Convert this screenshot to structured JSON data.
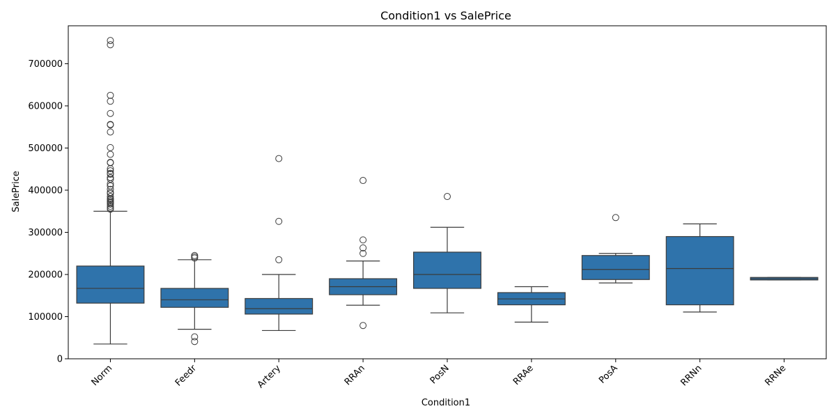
{
  "chart_data": {
    "type": "box",
    "title": "Condition1 vs SalePrice",
    "xlabel": "Condition1",
    "ylabel": "SalePrice",
    "ylim": [
      0,
      790000
    ],
    "yticks": [
      0,
      100000,
      200000,
      300000,
      400000,
      500000,
      600000,
      700000
    ],
    "color": "#2f73ab",
    "line_color": "#3b3b3b",
    "categories": [
      "Norm",
      "Feedr",
      "Artery",
      "RRAn",
      "PosN",
      "RRAe",
      "PosA",
      "RRNn",
      "RRNe"
    ],
    "boxes": [
      {
        "category": "Norm",
        "whisker_low": 35000,
        "q1": 132000,
        "median": 167000,
        "q3": 220000,
        "whisker_high": 350000,
        "outliers": [
          755000,
          745000,
          625000,
          611000,
          582000,
          556000,
          555000,
          538000,
          501000,
          485000,
          466000,
          465000,
          451000,
          446000,
          440000,
          438000,
          430000,
          426000,
          415000,
          410000,
          402000,
          395000,
          392000,
          385000,
          380000,
          378000,
          375000,
          372000,
          370000,
          367000,
          362000,
          358000,
          355000
        ]
      },
      {
        "category": "Feedr",
        "whisker_low": 70000,
        "q1": 122000,
        "median": 140000,
        "q3": 167000,
        "whisker_high": 235000,
        "outliers": [
          245000,
          242000,
          239000,
          52000,
          41000
        ]
      },
      {
        "category": "Artery",
        "whisker_low": 67000,
        "q1": 106000,
        "median": 119000,
        "q3": 143000,
        "whisker_high": 200000,
        "outliers": [
          475000,
          326000,
          235000
        ]
      },
      {
        "category": "RRAn",
        "whisker_low": 127000,
        "q1": 152000,
        "median": 171000,
        "q3": 190000,
        "whisker_high": 232000,
        "outliers": [
          423000,
          282000,
          263000,
          250000,
          79000
        ]
      },
      {
        "category": "PosN",
        "whisker_low": 109000,
        "q1": 167000,
        "median": 200000,
        "q3": 253000,
        "whisker_high": 312000,
        "outliers": [
          385000
        ]
      },
      {
        "category": "RRAe",
        "whisker_low": 87000,
        "q1": 128000,
        "median": 142000,
        "q3": 157000,
        "whisker_high": 171000,
        "outliers": []
      },
      {
        "category": "PosA",
        "whisker_low": 180000,
        "q1": 188000,
        "median": 212000,
        "q3": 245000,
        "whisker_high": 250000,
        "outliers": [
          335000
        ]
      },
      {
        "category": "RRNn",
        "whisker_low": 111000,
        "q1": 128000,
        "median": 214000,
        "q3": 290000,
        "whisker_high": 320000,
        "outliers": []
      },
      {
        "category": "RRNe",
        "whisker_low": 187000,
        "q1": 187000,
        "median": 190000,
        "q3": 193000,
        "whisker_high": 193000,
        "outliers": []
      }
    ]
  }
}
